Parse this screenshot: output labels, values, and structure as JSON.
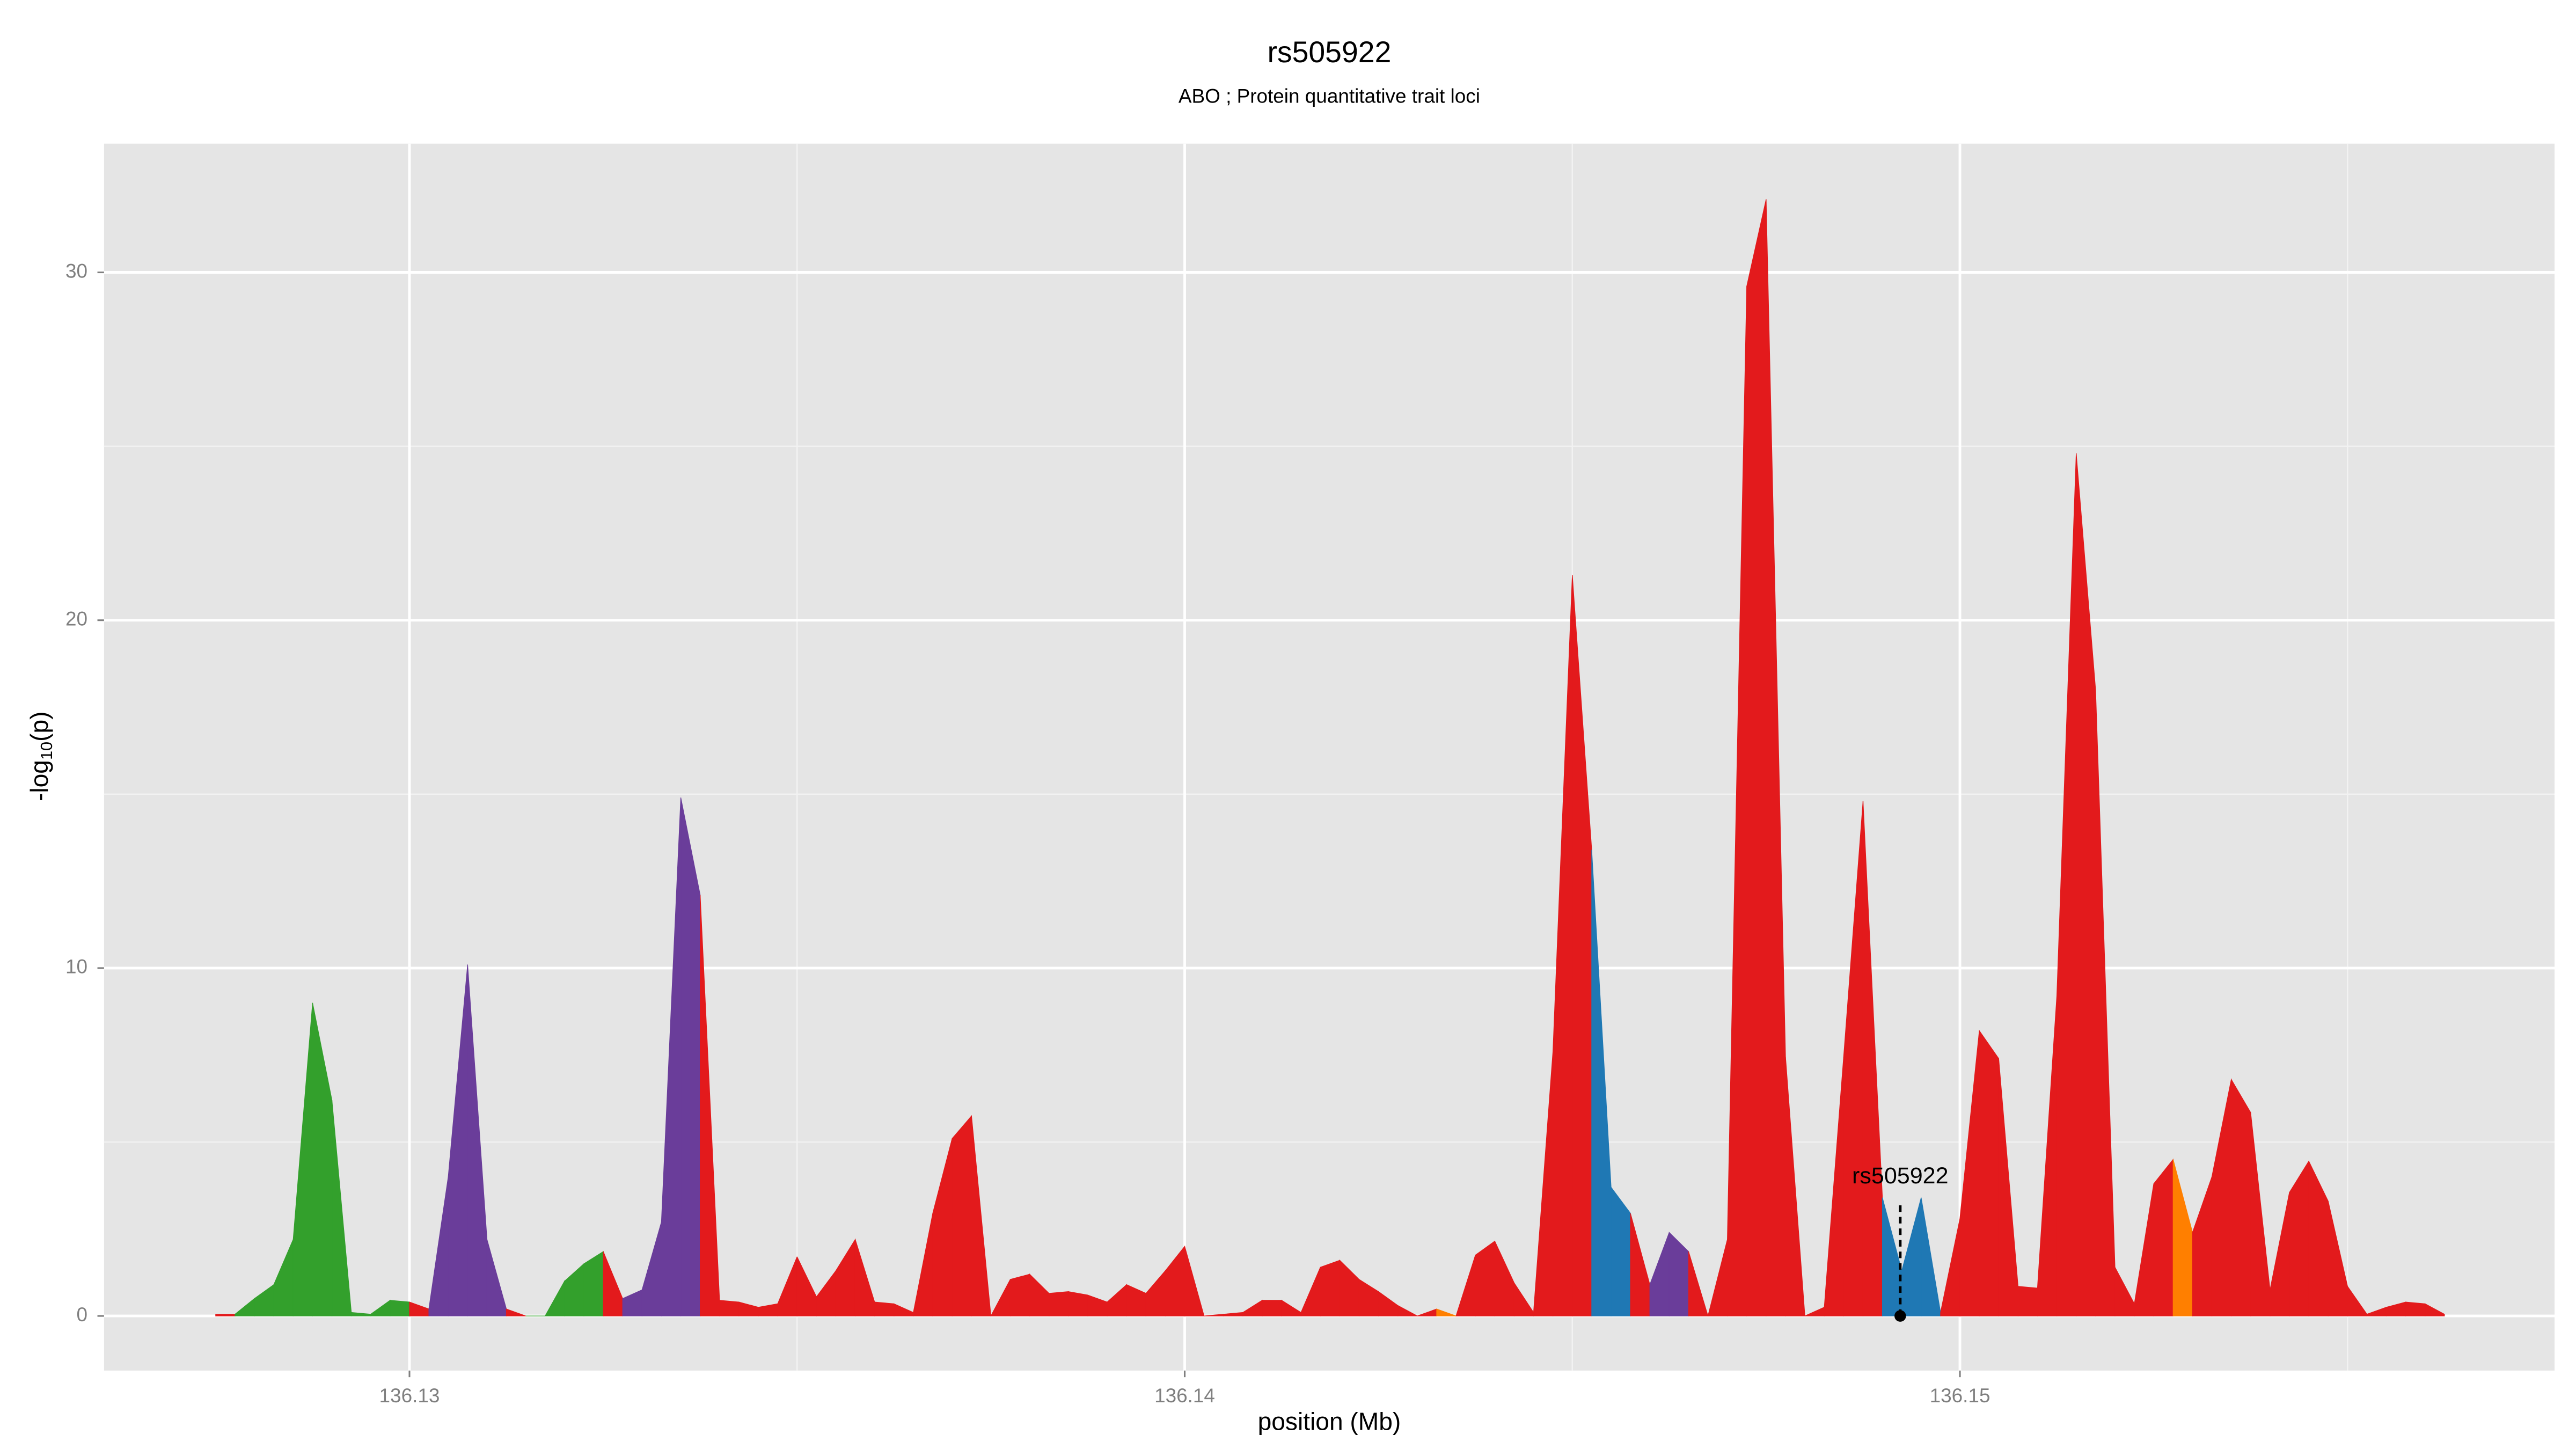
{
  "chart_data": {
    "type": "area",
    "title": "rs505922",
    "subtitle": "ABO ; Protein quantitative trait loci",
    "xlabel": "position (Mb)",
    "ylabel": {
      "text": "-log",
      "sub": "10",
      "suffix": "(p)"
    },
    "xlim": [
      136.12606,
      136.15767
    ],
    "ylim": [
      -1.57,
      33.7
    ],
    "xticks": [
      136.13,
      136.14,
      136.15
    ],
    "yticks": [
      0,
      10,
      20,
      30
    ],
    "grid": true,
    "x": [
      136.1275,
      136.12775,
      136.128,
      136.12825,
      136.1285,
      136.12875,
      136.129,
      136.12925,
      136.1295,
      136.12975,
      136.13,
      136.13025,
      136.1305,
      136.13075,
      136.131,
      136.13125,
      136.1315,
      136.13175,
      136.132,
      136.13225,
      136.1325,
      136.13275,
      136.133,
      136.13325,
      136.1335,
      136.13375,
      136.134,
      136.13425,
      136.1345,
      136.13475,
      136.135,
      136.13525,
      136.1355,
      136.13575,
      136.136,
      136.13625,
      136.1365,
      136.13675,
      136.137,
      136.13725,
      136.1375,
      136.13775,
      136.138,
      136.13825,
      136.1385,
      136.13875,
      136.139,
      136.13925,
      136.1395,
      136.13975,
      136.14,
      136.14025,
      136.1405,
      136.14075,
      136.141,
      136.14125,
      136.1415,
      136.14175,
      136.142,
      136.14225,
      136.1425,
      136.14275,
      136.143,
      136.14325,
      136.1435,
      136.14375,
      136.144,
      136.14425,
      136.1445,
      136.14475,
      136.145,
      136.14525,
      136.1455,
      136.14575,
      136.146,
      136.14625,
      136.1465,
      136.14675,
      136.147,
      136.14725,
      136.1475,
      136.14775,
      136.148,
      136.14825,
      136.1485,
      136.14875,
      136.149,
      136.14925,
      136.1495,
      136.14975,
      136.15,
      136.15025,
      136.1505,
      136.15075,
      136.151,
      136.15125,
      136.1515,
      136.15175,
      136.152,
      136.15225,
      136.1525,
      136.15275,
      136.153,
      136.15325,
      136.1535,
      136.15375,
      136.154,
      136.15425,
      136.1545,
      136.15475,
      136.155,
      136.15525,
      136.1555,
      136.15575,
      136.156,
      136.15625
    ],
    "values": [
      0.05,
      0.05,
      0.5,
      0.9,
      2.2,
      9.0,
      6.2,
      0.1,
      0.05,
      0.45,
      0.4,
      0.2,
      4.0,
      10.1,
      2.2,
      0.2,
      0,
      0,
      1.0,
      1.5,
      1.85,
      0.5,
      0.75,
      2.7,
      14.9,
      12.1,
      0.45,
      0.4,
      0.25,
      0.35,
      1.7,
      0.55,
      1.3,
      2.2,
      0.4,
      0.35,
      0.1,
      2.95,
      5.1,
      5.75,
      0,
      1.05,
      1.2,
      0.65,
      0.7,
      0.6,
      0.4,
      0.9,
      0.65,
      1.3,
      2.0,
      0,
      0.05,
      0.1,
      0.45,
      0.45,
      0.1,
      1.4,
      1.6,
      1.05,
      0.7,
      0.3,
      0,
      0.2,
      0,
      1.75,
      2.15,
      0.95,
      0.1,
      7.6,
      21.3,
      13.4,
      3.7,
      2.95,
      0.9,
      2.4,
      1.85,
      0,
      2.2,
      29.6,
      32.1,
      7.45,
      0,
      0.25,
      7.45,
      14.8,
      3.4,
      1.3,
      3.4,
      0.1,
      2.8,
      8.2,
      7.4,
      0.85,
      0.8,
      9.2,
      24.8,
      18.0,
      1.4,
      0.35,
      3.8,
      4.5,
      2.4,
      4.0,
      6.8,
      5.85,
      0.75,
      3.55,
      4.45,
      3.3,
      0.85,
      0.05,
      0.25,
      0.4,
      0.35,
      0.05
    ],
    "segment_colors": [
      "#e31a1c",
      "#33a02c",
      "#33a02c",
      "#33a02c",
      "#33a02c",
      "#33a02c",
      "#33a02c",
      "#33a02c",
      "#33a02c",
      "#33a02c",
      "#e31a1c",
      "#6a3d9a",
      "#6a3d9a",
      "#6a3d9a",
      "#6a3d9a",
      "#e31a1c",
      "#33a02c",
      "#33a02c",
      "#33a02c",
      "#33a02c",
      "#e31a1c",
      "#6a3d9a",
      "#6a3d9a",
      "#6a3d9a",
      "#6a3d9a",
      "#e31a1c",
      "#e31a1c",
      "#e31a1c",
      "#e31a1c",
      "#e31a1c",
      "#e31a1c",
      "#e31a1c",
      "#e31a1c",
      "#e31a1c",
      "#e31a1c",
      "#e31a1c",
      "#e31a1c",
      "#e31a1c",
      "#e31a1c",
      "#e31a1c",
      "#e31a1c",
      "#e31a1c",
      "#e31a1c",
      "#e31a1c",
      "#e31a1c",
      "#e31a1c",
      "#e31a1c",
      "#e31a1c",
      "#e31a1c",
      "#e31a1c",
      "#e31a1c",
      "#e31a1c",
      "#e31a1c",
      "#e31a1c",
      "#e31a1c",
      "#e31a1c",
      "#e31a1c",
      "#e31a1c",
      "#e31a1c",
      "#e31a1c",
      "#e31a1c",
      "#e31a1c",
      "#e31a1c",
      "#ff7f00",
      "#e31a1c",
      "#e31a1c",
      "#e31a1c",
      "#e31a1c",
      "#e31a1c",
      "#e31a1c",
      "#e31a1c",
      "#1f78b4",
      "#1f78b4",
      "#e31a1c",
      "#6a3d9a",
      "#6a3d9a",
      "#e31a1c",
      "#e31a1c",
      "#e31a1c",
      "#e31a1c",
      "#e31a1c",
      "#e31a1c",
      "#e31a1c",
      "#e31a1c",
      "#e31a1c",
      "#e31a1c",
      "#1f78b4",
      "#1f78b4",
      "#1f78b4",
      "#e31a1c",
      "#e31a1c",
      "#e31a1c",
      "#e31a1c",
      "#e31a1c",
      "#e31a1c",
      "#e31a1c",
      "#e31a1c",
      "#e31a1c",
      "#e31a1c",
      "#e31a1c",
      "#e31a1c",
      "#ff7f00",
      "#e31a1c",
      "#e31a1c",
      "#e31a1c",
      "#e31a1c",
      "#e31a1c",
      "#e31a1c",
      "#e31a1c",
      "#e31a1c",
      "#e31a1c",
      "#e31a1c",
      "#e31a1c",
      "#e31a1c",
      "#e31a1c"
    ],
    "highlight": {
      "label": "rs505922",
      "x": 136.14923,
      "y": 0
    }
  }
}
